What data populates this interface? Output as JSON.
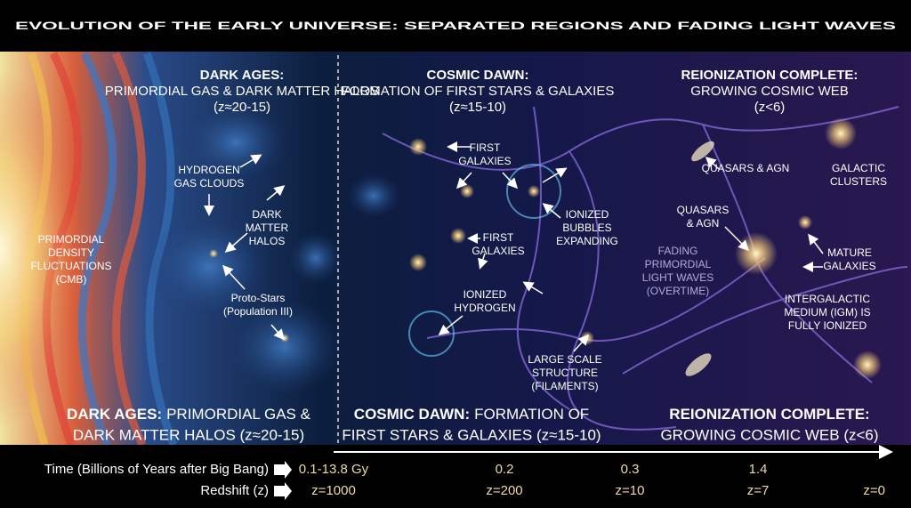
{
  "title": "EVOLUTION OF THE EARLY UNIVERSE: SEPARATED REGIONS AND FADING LIGHT WAVES",
  "panels": [
    {
      "header": [
        "DARK AGES:",
        "PRIMORDIAL GAS & DARK MATTER HALOS",
        "(z≈20-15)"
      ],
      "footer": {
        "bold": "DARK AGES:",
        "lines": [
          "PRIMORDIAL GAS &",
          "DARK MATTER HALOS (z≈20-15)"
        ]
      }
    },
    {
      "header": [
        "COSMIC DAWN:",
        "FORMATION OF FIRST STARS & GALAXIES",
        "(z≈15-10)"
      ],
      "footer": {
        "bold": "COSMIC DAWN:",
        "lines": [
          "FORMATION OF",
          "FIRST STARS & GALAXIES (z≈15-10)"
        ]
      }
    },
    {
      "header": [
        "REIONIZATION COMPLETE:",
        "GROWING COSMIC WEB",
        "(z<6)"
      ],
      "footer": {
        "bold": "REIONIZATION COMPLETE:",
        "lines": [
          "",
          "GROWING COSMIC WEB (z<6)"
        ]
      }
    }
  ],
  "annotations": [
    [
      "PRIMORDIAL",
      "DENSITY",
      "FLUCTUATIONS",
      "(CMB)"
    ],
    [
      "HYDROGEN",
      "GAS CLOUDS"
    ],
    [
      "DARK",
      "MATTER",
      "HALOS"
    ],
    [
      "Proto-Stars",
      "(Population III)"
    ],
    [
      "FIRST",
      "GALAXIES"
    ],
    [
      "FIRST",
      "GALAXIES"
    ],
    [
      "IONIZED",
      "HYDROGEN"
    ],
    [
      "IONIZED",
      "BUBBLES",
      "EXPANDING"
    ],
    [
      "LARGE SCALE",
      "STRUCTURE",
      "(FILAMENTS)"
    ],
    [
      "FADING",
      "PRIMORDIAL",
      "LIGHT WAVES",
      "(OVERTIME)"
    ],
    [
      "QUASARS & AGN"
    ],
    [
      "GALACTIC",
      "CLUSTERS"
    ],
    [
      "QUASARS",
      "& AGN"
    ],
    [
      "MATURE",
      "GALAXIES"
    ],
    [
      "INTERGALACTIC",
      "MEDIUM (IGM) IS",
      "FULLY IONIZED"
    ]
  ],
  "timeline": {
    "time_label": "Time (Billions of Years after Big Bang)",
    "times": [
      "0.1-13.8 Gy",
      "0.2",
      "0.3",
      "1.4"
    ],
    "redshift_label": "Redshift (z)",
    "redshifts": [
      "z=1000",
      "z=200",
      "z=10",
      "z=7",
      "z=0"
    ]
  }
}
